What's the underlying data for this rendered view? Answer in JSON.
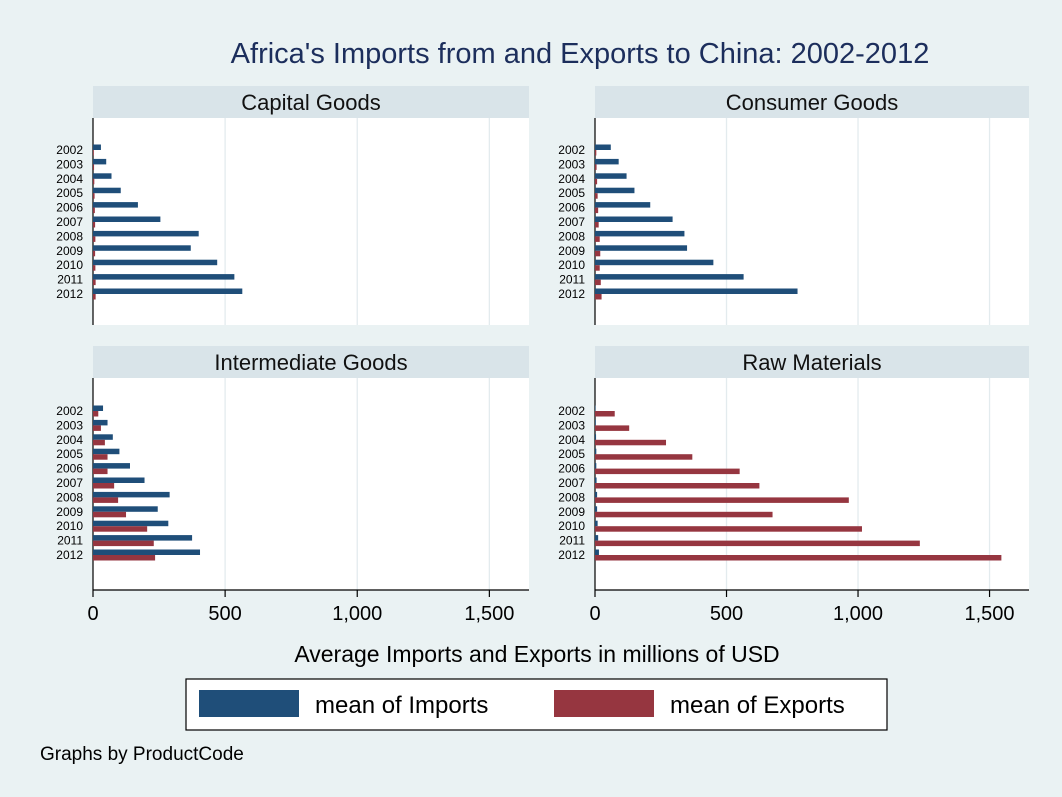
{
  "title": "Africa's Imports from and Exports to China: 2002-2012",
  "footer": "Graphs by ProductCode",
  "colors": {
    "imports": "#1f4e79",
    "exports": "#963640",
    "page_background": "#eaf2f3",
    "panel_header": "#d9e4e9",
    "title": "#1c2e5c"
  },
  "chart_data": {
    "type": "bar",
    "orientation": "horizontal",
    "layout": "2x2 small multiples",
    "xlabel": "Average Imports and Exports in millions of USD",
    "xlim": [
      0,
      1650
    ],
    "xticks": [
      0,
      500,
      1000,
      1500
    ],
    "xtick_labels": [
      "0",
      "500",
      "1,000",
      "1,500"
    ],
    "grid": true,
    "legend_position": "bottom",
    "legend": [
      "mean of Imports",
      "mean of Exports"
    ],
    "categories": [
      "2002",
      "2003",
      "2004",
      "2005",
      "2006",
      "2007",
      "2008",
      "2009",
      "2010",
      "2011",
      "2012"
    ],
    "panels": [
      {
        "title": "Capital Goods",
        "series": [
          {
            "name": "mean of Imports",
            "values": [
              30,
              50,
              70,
              105,
              170,
              255,
              400,
              370,
              470,
              535,
              565
            ]
          },
          {
            "name": "mean of Exports",
            "values": [
              3,
              4,
              5,
              6,
              7,
              8,
              9,
              8,
              9,
              10,
              10
            ]
          }
        ]
      },
      {
        "title": "Consumer Goods",
        "series": [
          {
            "name": "mean of Imports",
            "values": [
              60,
              90,
              120,
              150,
              210,
              295,
              340,
              350,
              450,
              565,
              770
            ]
          },
          {
            "name": "mean of Exports",
            "values": [
              5,
              6,
              8,
              10,
              12,
              14,
              18,
              20,
              18,
              22,
              25
            ]
          }
        ]
      },
      {
        "title": "Intermediate Goods",
        "series": [
          {
            "name": "mean of Imports",
            "values": [
              38,
              55,
              75,
              100,
              140,
              195,
              290,
              245,
              285,
              375,
              405
            ]
          },
          {
            "name": "mean of Exports",
            "values": [
              20,
              30,
              45,
              55,
              55,
              80,
              95,
              125,
              205,
              230,
              235
            ]
          }
        ]
      },
      {
        "title": "Raw Materials",
        "series": [
          {
            "name": "mean of Imports",
            "values": [
              2,
              3,
              4,
              5,
              5,
              6,
              8,
              8,
              10,
              12,
              15
            ]
          },
          {
            "name": "mean of Exports",
            "values": [
              75,
              130,
              270,
              370,
              550,
              625,
              965,
              675,
              1015,
              1235,
              1545
            ]
          }
        ]
      }
    ]
  }
}
